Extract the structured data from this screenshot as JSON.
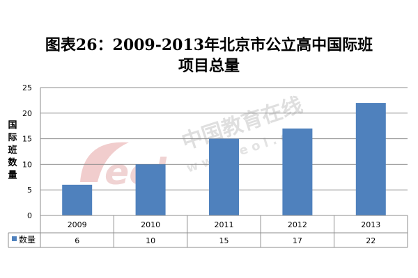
{
  "title_line1": "图表26：2009-2013年北京市公立高中国际班",
  "title_line2": "项目总量",
  "watermark": {
    "brand": "中国教育在线",
    "url": "www.eol.cn",
    "logo": "eol"
  },
  "chart_data": {
    "type": "bar",
    "title": "图表26：2009-2013年北京市公立高中国际班项目总量",
    "ylabel": "国际班数量",
    "categories": [
      "2009",
      "2010",
      "2011",
      "2012",
      "2013"
    ],
    "series": [
      {
        "name": "数量",
        "values": [
          6,
          10,
          15,
          17,
          22
        ],
        "color": "#4f81bd"
      }
    ],
    "ylim": [
      0,
      25
    ],
    "yticks": [
      0,
      5,
      10,
      15,
      20,
      25
    ],
    "grid": true,
    "data_table": true
  }
}
